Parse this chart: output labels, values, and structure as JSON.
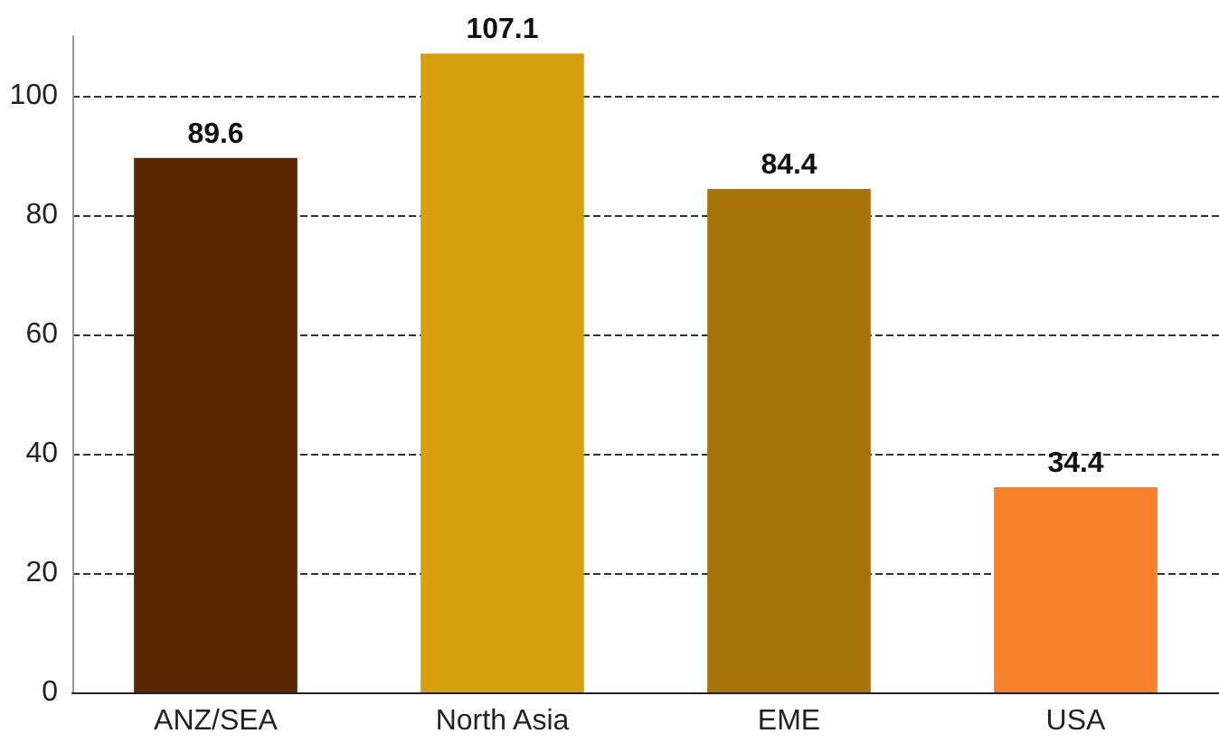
{
  "chart_data": {
    "type": "bar",
    "categories": [
      "ANZ/SEA",
      "North Asia",
      "EME",
      "USA"
    ],
    "values": [
      89.6,
      107.1,
      84.4,
      34.4
    ],
    "colors": [
      "#5a2800",
      "#d59f0e",
      "#a6740a",
      "#f5822a"
    ],
    "ylim": [
      0,
      110
    ],
    "yticks": [
      0,
      20,
      40,
      60,
      80,
      100
    ],
    "grid": "y",
    "data_labels": true
  }
}
